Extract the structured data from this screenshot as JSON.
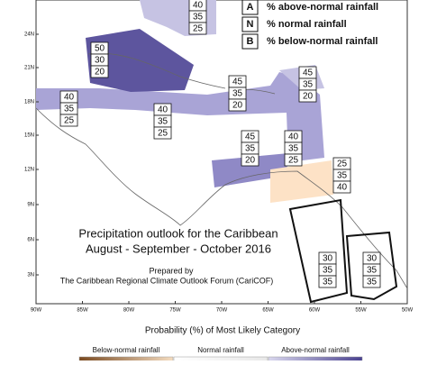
{
  "legend": {
    "items": [
      {
        "key": "A",
        "text": "% above-normal rainfall"
      },
      {
        "key": "N",
        "text": "% normal rainfall"
      },
      {
        "key": "B",
        "text": "% below-normal rainfall"
      }
    ]
  },
  "map": {
    "lat_labels": [
      "24N",
      "21N",
      "18N",
      "15N",
      "12N",
      "9N",
      "6N",
      "3N"
    ],
    "lon_labels": [
      "90W",
      "85W",
      "80W",
      "75W",
      "70W",
      "65W",
      "60W",
      "55W",
      "50W"
    ],
    "boxes": [
      [
        40,
        35,
        25
      ],
      [
        50,
        30,
        20
      ],
      [
        40,
        35,
        25
      ],
      [
        40,
        35,
        25
      ],
      [
        45,
        35,
        20
      ],
      [
        45,
        35,
        20
      ],
      [
        45,
        35,
        20
      ],
      [
        40,
        35,
        25
      ],
      [
        25,
        35,
        40
      ],
      [
        30,
        35,
        35
      ],
      [
        30,
        35,
        35
      ]
    ]
  },
  "title": {
    "line1": "Precipitation outlook for the Caribbean",
    "line2": "August - September - October 2016",
    "prepared": "Prepared by",
    "forum": "The Caribbean Regional Climate Outlook Forum (CariCOF)"
  },
  "colorbar": {
    "title": "Probability (%) of Most Likely Category",
    "labels": [
      "Below-normal rainfall",
      "Normal rainfall",
      "Above-normal rainfall"
    ]
  }
}
